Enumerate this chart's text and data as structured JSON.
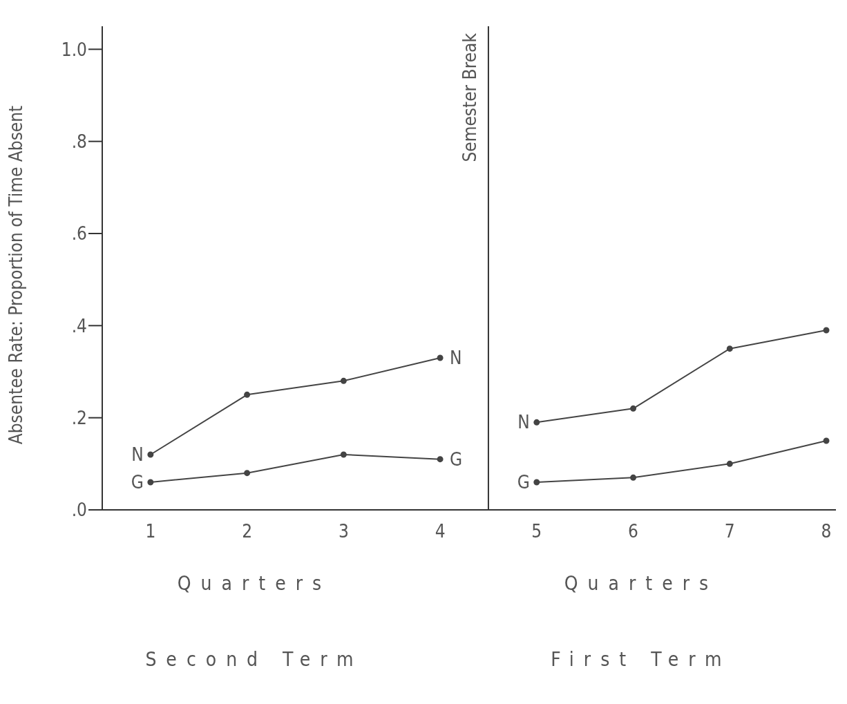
{
  "chart_data": {
    "type": "line",
    "ylabel": "Absentee Rate:  Proportion of Time Absent",
    "xlim": [
      0.5,
      8.1
    ],
    "xticks": [
      1,
      2,
      3,
      4,
      5,
      6,
      7,
      8
    ],
    "ylim": [
      0,
      1.05
    ],
    "yticks": [
      {
        "value": 0,
        "label": ".0"
      },
      {
        "value": 0.2,
        "label": ".2"
      },
      {
        "value": 0.4,
        "label": ".4"
      },
      {
        "value": 0.6,
        "label": ".6"
      },
      {
        "value": 0.8,
        "label": ".8"
      },
      {
        "value": 1,
        "label": "1.0"
      }
    ],
    "grid": false,
    "legend": false,
    "marker": "circle",
    "line_style": "solid",
    "series": [
      {
        "name": "N",
        "color": "#444444",
        "x": [
          1,
          2,
          3,
          4
        ],
        "values": [
          0.12,
          0.25,
          0.28,
          0.33
        ]
      },
      {
        "name": "G",
        "color": "#444444",
        "x": [
          1,
          2,
          3,
          4
        ],
        "values": [
          0.06,
          0.08,
          0.12,
          0.11
        ]
      },
      {
        "name": "N",
        "color": "#444444",
        "x": [
          5,
          6,
          7,
          8
        ],
        "values": [
          0.19,
          0.22,
          0.35,
          0.39
        ]
      },
      {
        "name": "G",
        "color": "#444444",
        "x": [
          5,
          6,
          7,
          8
        ],
        "values": [
          0.06,
          0.07,
          0.1,
          0.15
        ]
      }
    ],
    "ref_lines": [
      {
        "axis": "x",
        "value": 4.5,
        "label": "Semester Break",
        "color": "#333333"
      }
    ],
    "annotations": [
      "Quarters",
      "Quarters",
      "Second Term",
      "First Term"
    ]
  }
}
